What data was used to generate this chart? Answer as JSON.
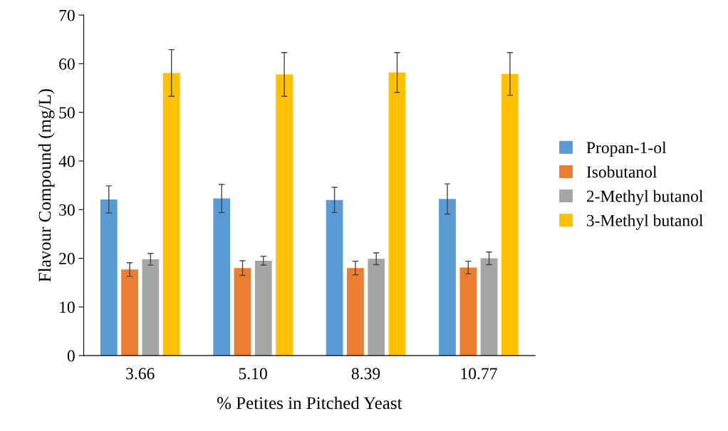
{
  "chart_data": {
    "type": "bar",
    "xlabel": "% Petites in Pitched Yeast",
    "ylabel": "Flavour Compound (mg/L)",
    "categories": [
      "3.66",
      "5.10",
      "8.39",
      "10.77"
    ],
    "series": [
      {
        "name": "Propan-1-ol",
        "color": "#5b9bd5",
        "values": [
          32.1,
          32.3,
          32.0,
          32.2
        ],
        "errors": [
          2.8,
          2.9,
          2.6,
          3.1
        ]
      },
      {
        "name": "Isobutanol",
        "color": "#ed7d31",
        "values": [
          17.7,
          18.0,
          18.0,
          18.1
        ],
        "errors": [
          1.4,
          1.5,
          1.4,
          1.3
        ]
      },
      {
        "name": "2-Methyl butanol",
        "color": "#a5a5a5",
        "values": [
          19.8,
          19.5,
          19.9,
          20.0
        ],
        "errors": [
          1.2,
          0.9,
          1.2,
          1.3
        ]
      },
      {
        "name": "3-Methyl butanol",
        "color": "#ffc000",
        "values": [
          58.1,
          57.8,
          58.2,
          57.9
        ],
        "errors": [
          4.8,
          4.5,
          4.1,
          4.4
        ]
      }
    ],
    "ylim": [
      0,
      70
    ],
    "yticks": [
      0,
      10,
      20,
      30,
      40,
      50,
      60,
      70
    ],
    "grid": false,
    "legend": "right"
  }
}
